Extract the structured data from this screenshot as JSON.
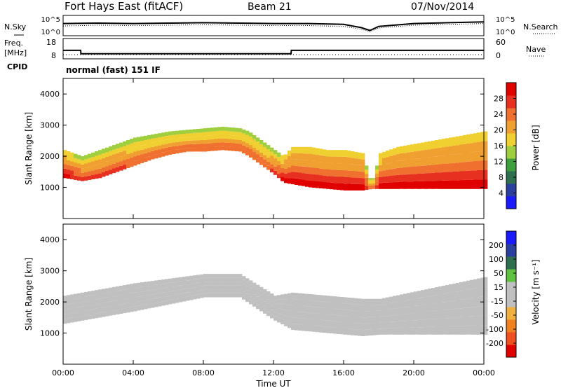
{
  "header": {
    "station": "Fort Hays East (fitACF)",
    "beam": "Beam 21",
    "date": "07/Nov/2014"
  },
  "labels": {
    "nsky": "N.Sky",
    "nsearch": "N.Search",
    "freq_line1": "Freq.",
    "freq_line2": "[MHz]",
    "nave": "Nave",
    "cpid": "CPID",
    "mode": "normal (fast) 151 IF"
  },
  "colors": {
    "power_scale": [
      "#1a1aff",
      "#2a3f9e",
      "#2e6f4f",
      "#3e9e3e",
      "#9fcf3f",
      "#f0d030",
      "#f0a030",
      "#f07030",
      "#e83020",
      "#e00000"
    ],
    "velocity_scale": [
      "#e00000",
      "#f05020",
      "#f08020",
      "#f0b040",
      "#c0c0c0",
      "#c0c0c0",
      "#60c040",
      "#2e6f4f",
      "#2a3f9e",
      "#1a1aff"
    ],
    "noise_trace": "#000000"
  },
  "chart_data": [
    {
      "type": "line",
      "panel": "noise",
      "y_tick_labels": [
        "10^5",
        "10^0"
      ],
      "right_tick_labels": [
        "10^5",
        "10^0"
      ],
      "x": [
        "00:00",
        "02:00",
        "04:00",
        "06:00",
        "08:00",
        "10:00",
        "12:00",
        "14:00",
        "16:00",
        "17:00",
        "17:30",
        "18:00",
        "20:00",
        "22:00",
        "24:00"
      ],
      "series": [
        {
          "name": "N.Sky",
          "values": [
            3.0,
            3.1,
            3.0,
            3.1,
            3.2,
            3.1,
            3.0,
            3.0,
            2.8,
            2.0,
            1.3,
            2.3,
            3.0,
            3.2,
            3.4
          ]
        },
        {
          "name": "N.Search",
          "values": [
            2.4,
            2.6,
            2.5,
            2.6,
            2.7,
            2.6,
            2.5,
            2.5,
            2.3,
            1.6,
            1.0,
            1.9,
            2.6,
            2.8,
            3.0
          ]
        }
      ]
    },
    {
      "type": "line",
      "panel": "frequency",
      "y_tick_labels": [
        "18",
        "8"
      ],
      "right_tick_labels": [
        "60",
        "0"
      ],
      "x": [
        "00:00",
        "01:00",
        "01:01",
        "13:00",
        "13:01",
        "24:00"
      ],
      "series": [
        {
          "name": "Freq.",
          "values": [
            12.0,
            12.0,
            10.0,
            10.0,
            12.0,
            12.0
          ]
        },
        {
          "name": "Nave",
          "values": [
            12,
            12,
            12,
            12,
            12,
            12
          ]
        }
      ]
    },
    {
      "type": "heatmap",
      "panel": "power",
      "x_tick_labels": [
        "00:00",
        "04:00",
        "08:00",
        "12:00",
        "16:00",
        "20:00",
        "00:00"
      ],
      "xlim_hours": [
        0,
        24
      ],
      "ylabel": "Slant Range [km]",
      "y_tick_labels": [
        "1000",
        "2000",
        "3000",
        "4000"
      ],
      "ylim": [
        0,
        4500
      ],
      "colorbar_label": "Power [dB]",
      "colorbar_ticks": [
        "4",
        "8",
        "12",
        "16",
        "20",
        "24",
        "28"
      ],
      "colorbar_range": [
        0,
        30
      ],
      "bands": [
        {
          "t": 0.0,
          "lower": 1300,
          "upper": 2200,
          "power": 24
        },
        {
          "t": 1.0,
          "lower": 1200,
          "upper": 2000,
          "power": 22
        },
        {
          "t": 2.0,
          "lower": 1300,
          "upper": 2200,
          "power": 22
        },
        {
          "t": 3.0,
          "lower": 1500,
          "upper": 2400,
          "power": 22
        },
        {
          "t": 4.0,
          "lower": 1700,
          "upper": 2600,
          "power": 20
        },
        {
          "t": 5.0,
          "lower": 1900,
          "upper": 2700,
          "power": 20
        },
        {
          "t": 6.0,
          "lower": 2050,
          "upper": 2800,
          "power": 20
        },
        {
          "t": 7.0,
          "lower": 2150,
          "upper": 2850,
          "power": 20
        },
        {
          "t": 8.0,
          "lower": 2150,
          "upper": 2900,
          "power": 20
        },
        {
          "t": 9.0,
          "lower": 2200,
          "upper": 2950,
          "power": 20
        },
        {
          "t": 10.0,
          "lower": 2150,
          "upper": 2900,
          "power": 20
        },
        {
          "t": 10.5,
          "lower": 2000,
          "upper": 2800,
          "power": 20
        },
        {
          "t": 11.0,
          "lower": 1800,
          "upper": 2600,
          "power": 20
        },
        {
          "t": 11.5,
          "lower": 1600,
          "upper": 2400,
          "power": 20
        },
        {
          "t": 12.0,
          "lower": 1400,
          "upper": 2200,
          "power": 22
        },
        {
          "t": 12.5,
          "lower": 1150,
          "upper": 2000,
          "power": 24
        },
        {
          "t": 13.0,
          "lower": 1100,
          "upper": 2300,
          "power": 24
        },
        {
          "t": 14.0,
          "lower": 1000,
          "upper": 2300,
          "power": 24
        },
        {
          "t": 15.0,
          "lower": 950,
          "upper": 2200,
          "power": 24
        },
        {
          "t": 16.0,
          "lower": 900,
          "upper": 2200,
          "power": 24
        },
        {
          "t": 17.0,
          "lower": 900,
          "upper": 2100,
          "power": 24
        },
        {
          "t": 17.5,
          "lower": 950,
          "upper": 1100,
          "power": 20
        },
        {
          "t": 18.0,
          "lower": 950,
          "upper": 2100,
          "power": 24
        },
        {
          "t": 19.0,
          "lower": 950,
          "upper": 2300,
          "power": 24
        },
        {
          "t": 20.0,
          "lower": 950,
          "upper": 2400,
          "power": 24
        },
        {
          "t": 21.0,
          "lower": 950,
          "upper": 2500,
          "power": 24
        },
        {
          "t": 22.0,
          "lower": 950,
          "upper": 2600,
          "power": 24
        },
        {
          "t": 23.0,
          "lower": 950,
          "upper": 2700,
          "power": 24
        },
        {
          "t": 24.0,
          "lower": 950,
          "upper": 2800,
          "power": 24
        }
      ]
    },
    {
      "type": "heatmap",
      "panel": "velocity",
      "x_tick_labels": [
        "00:00",
        "04:00",
        "08:00",
        "12:00",
        "16:00",
        "20:00",
        "00:00"
      ],
      "xlim_hours": [
        0,
        24
      ],
      "xlabel": "Time UT",
      "ylabel": "Slant Range [km]",
      "y_tick_labels": [
        "1000",
        "2000",
        "3000",
        "4000"
      ],
      "ylim": [
        0,
        4500
      ],
      "colorbar_label": "Velocity [m s⁻¹]",
      "colorbar_ticks": [
        "200",
        "100",
        "50",
        "15",
        "-15",
        "-50",
        "-100",
        "-200"
      ],
      "colorbar_range": [
        -250,
        250
      ],
      "bands": [
        {
          "t": 0.0,
          "lower": 1300,
          "upper": 2200,
          "velocity": 0
        },
        {
          "t": 4.0,
          "lower": 1700,
          "upper": 2600,
          "velocity": 0
        },
        {
          "t": 8.0,
          "lower": 2150,
          "upper": 2900,
          "velocity": 0
        },
        {
          "t": 10.0,
          "lower": 2150,
          "upper": 2900,
          "velocity": 0
        },
        {
          "t": 12.0,
          "lower": 1400,
          "upper": 2200,
          "velocity": 0
        },
        {
          "t": 13.0,
          "lower": 1100,
          "upper": 2300,
          "velocity": 0
        },
        {
          "t": 17.0,
          "lower": 900,
          "upper": 2100,
          "velocity": 0
        },
        {
          "t": 18.0,
          "lower": 950,
          "upper": 2100,
          "velocity": 0
        },
        {
          "t": 24.0,
          "lower": 950,
          "upper": 2800,
          "velocity": 0
        }
      ]
    }
  ]
}
